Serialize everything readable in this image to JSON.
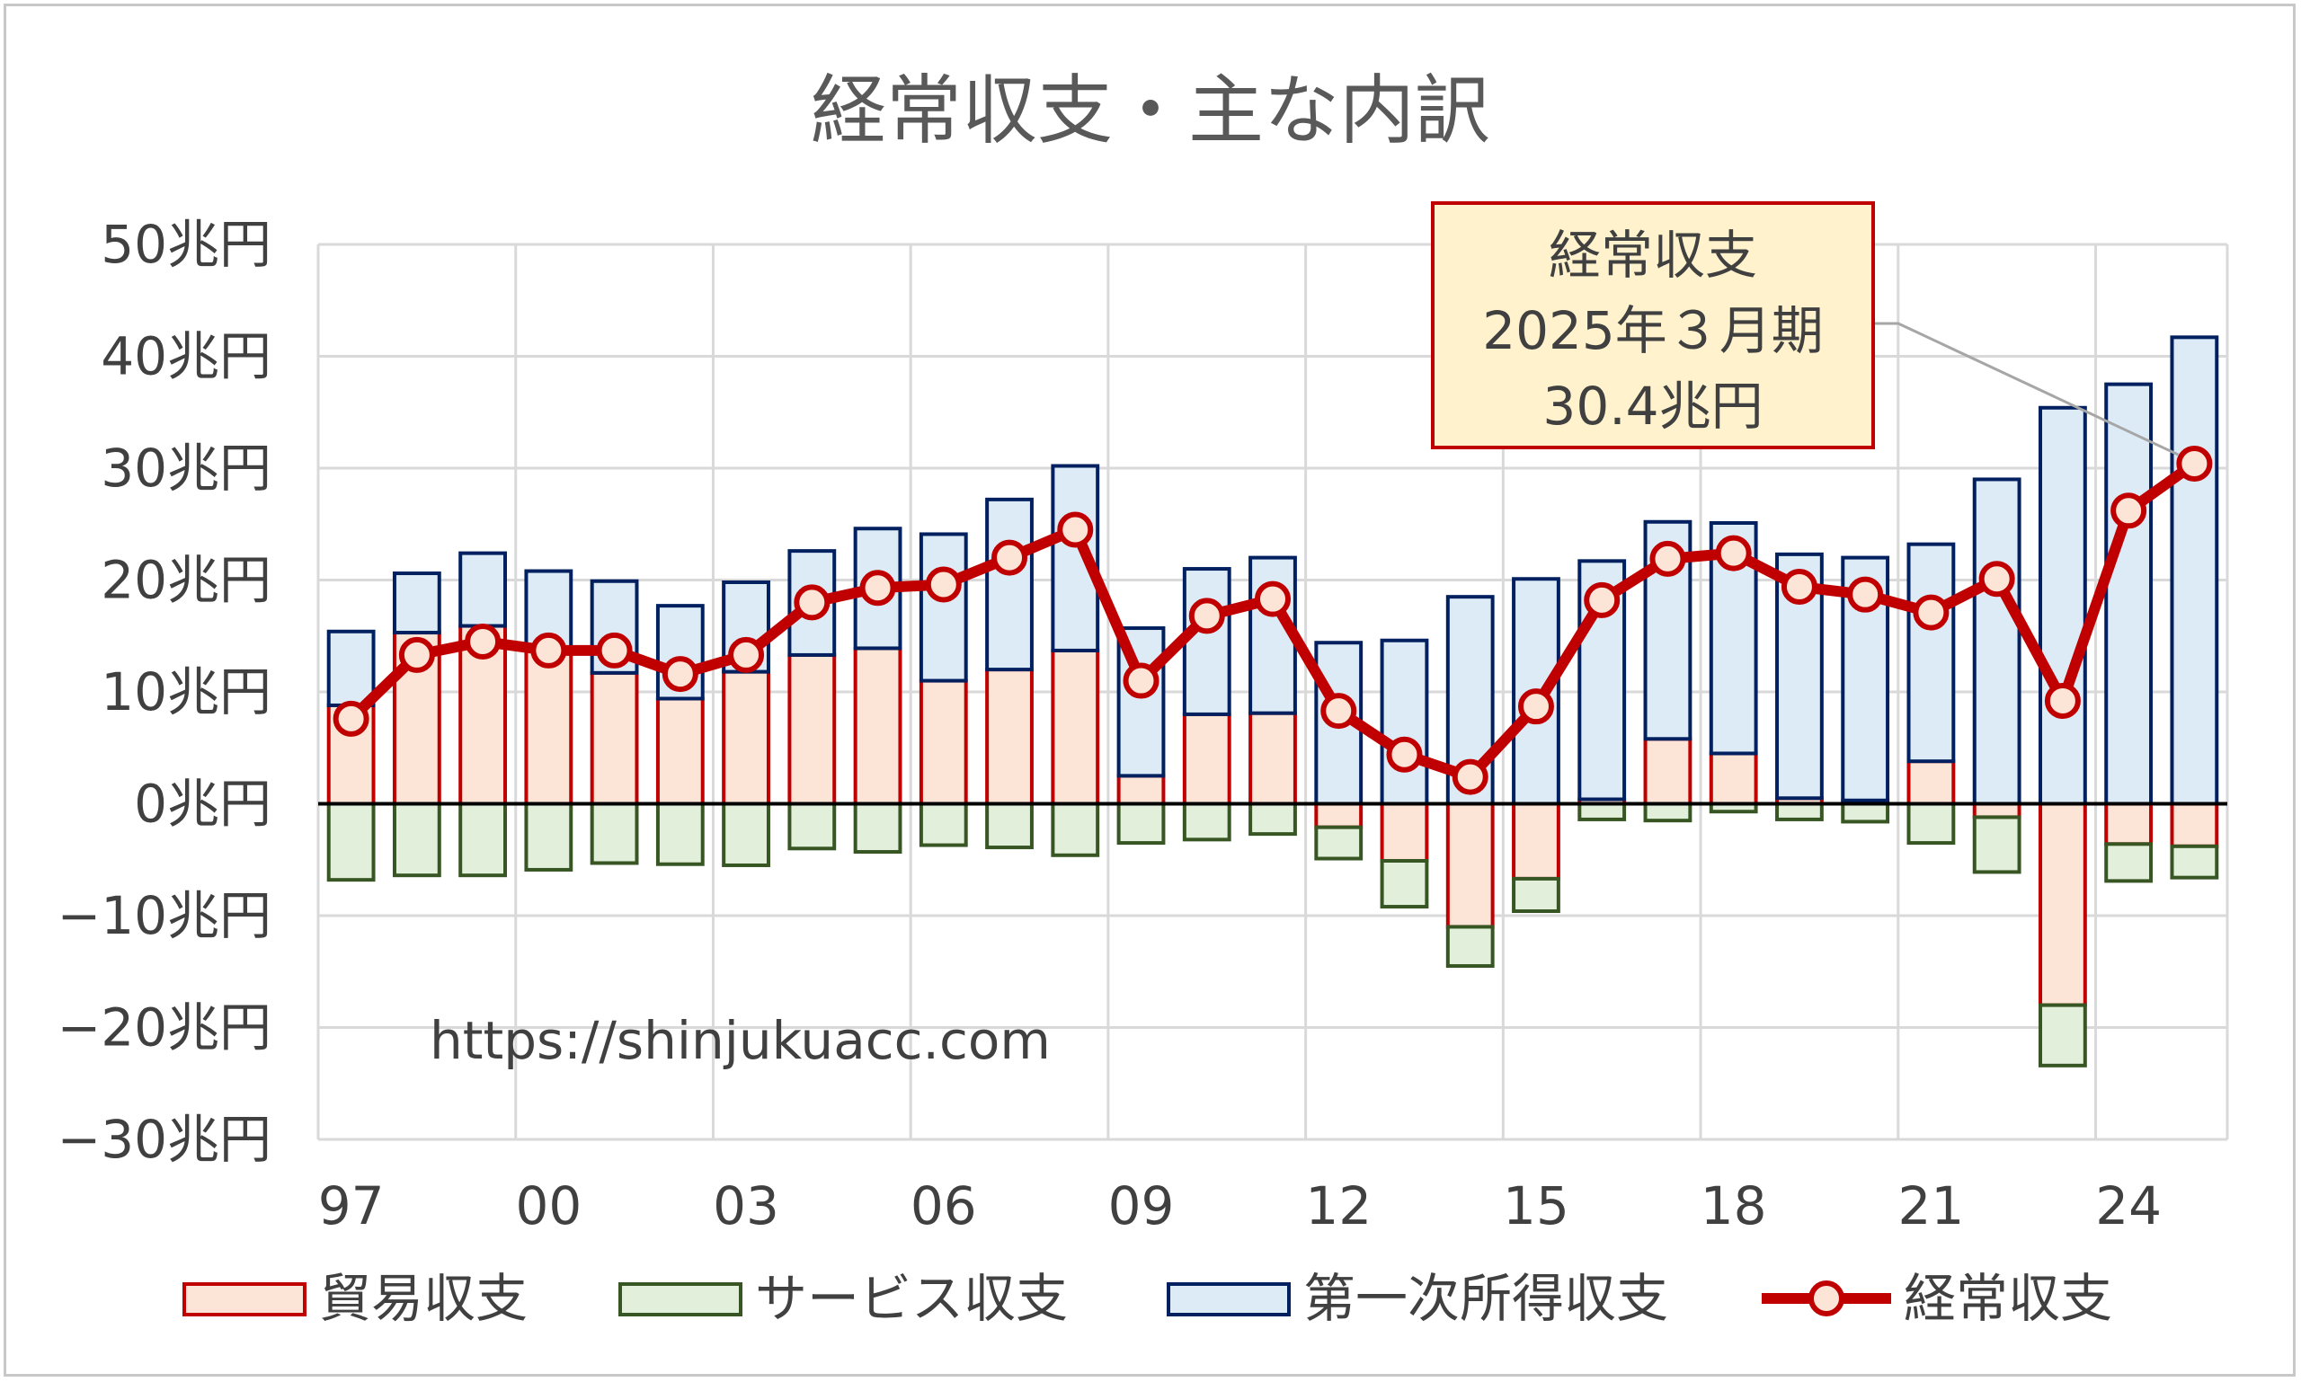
{
  "chart_data": {
    "type": "bar+line",
    "title": "経常収支・主な内訳",
    "ylim": [
      -30,
      50
    ],
    "y_ticks": [
      {
        "value": 50,
        "label": "50兆円"
      },
      {
        "value": 40,
        "label": "40兆円"
      },
      {
        "value": 30,
        "label": "30兆円"
      },
      {
        "value": 20,
        "label": "20兆円"
      },
      {
        "value": 10,
        "label": "10兆円"
      },
      {
        "value": 0,
        "label": "0兆円"
      },
      {
        "value": -10,
        "label": "−10兆円"
      },
      {
        "value": -20,
        "label": "−20兆円"
      },
      {
        "value": -30,
        "label": "−30兆円"
      }
    ],
    "x_tick_labels": [
      {
        "index": 0,
        "label": "97"
      },
      {
        "index": 3,
        "label": "00"
      },
      {
        "index": 6,
        "label": "03"
      },
      {
        "index": 9,
        "label": "06"
      },
      {
        "index": 12,
        "label": "09"
      },
      {
        "index": 15,
        "label": "12"
      },
      {
        "index": 18,
        "label": "15"
      },
      {
        "index": 21,
        "label": "18"
      },
      {
        "index": 24,
        "label": "21"
      },
      {
        "index": 27,
        "label": "24"
      }
    ],
    "series": [
      {
        "name": "貿易収支",
        "kind": "bar",
        "values": [
          8.8,
          15.3,
          15.9,
          13.8,
          11.7,
          9.4,
          11.8,
          13.3,
          13.9,
          11.0,
          12.0,
          13.7,
          2.5,
          8.0,
          8.1,
          -2.1,
          -5.1,
          -11.0,
          -6.7,
          0.4,
          5.8,
          4.5,
          0.5,
          0.3,
          3.8,
          -1.2,
          -18.0,
          -3.6,
          -3.8
        ]
      },
      {
        "name": "サービス収支",
        "kind": "bar",
        "values": [
          -6.8,
          -6.4,
          -6.4,
          -5.9,
          -5.3,
          -5.4,
          -5.5,
          -4.0,
          -4.3,
          -3.7,
          -3.9,
          -4.6,
          -3.5,
          -3.2,
          -2.7,
          -2.8,
          -4.1,
          -3.5,
          -2.9,
          -1.4,
          -1.5,
          -0.7,
          -1.4,
          -1.6,
          -3.5,
          -4.9,
          -5.4,
          -3.3,
          -2.8
        ]
      },
      {
        "name": "第一次所得収支",
        "kind": "bar",
        "values": [
          6.6,
          5.3,
          6.5,
          7.0,
          8.2,
          8.3,
          8.0,
          9.3,
          10.7,
          13.1,
          15.2,
          16.5,
          13.2,
          13.0,
          13.9,
          14.4,
          14.6,
          18.5,
          20.1,
          21.3,
          19.4,
          20.6,
          21.8,
          21.7,
          19.4,
          29.0,
          35.4,
          37.5,
          41.7
        ]
      },
      {
        "name": "経常収支",
        "kind": "line",
        "values": [
          7.6,
          13.3,
          14.5,
          13.7,
          13.7,
          11.6,
          13.3,
          18.0,
          19.3,
          19.6,
          22.0,
          24.5,
          11.0,
          16.8,
          18.3,
          8.3,
          4.4,
          2.4,
          8.7,
          18.2,
          21.9,
          22.4,
          19.4,
          18.7,
          17.1,
          20.1,
          9.2,
          26.2,
          30.4
        ]
      }
    ],
    "callout": {
      "lines": [
        "経常収支",
        "2025年３月期",
        "30.4兆円"
      ],
      "target_index": 28
    },
    "watermark": "https://shinjukuacc.com",
    "legend": [
      {
        "label": "貿易収支",
        "kind": "bar",
        "fill": "#fce4d6",
        "stroke": "#c00000"
      },
      {
        "label": "サービス収支",
        "kind": "bar",
        "fill": "#e2efda",
        "stroke": "#375623"
      },
      {
        "label": "第一次所得収支",
        "kind": "bar",
        "fill": "#ddebf7",
        "stroke": "#002060"
      },
      {
        "label": "経常収支",
        "kind": "line",
        "fill": "#fce4d6",
        "stroke": "#c00000"
      }
    ],
    "legend_placement": "bottom",
    "grid": true,
    "colors": {
      "trade_fill": "#fce4d6",
      "trade_stroke": "#c00000",
      "service_fill": "#e2efda",
      "service_stroke": "#375623",
      "income_fill": "#ddebf7",
      "income_stroke": "#002060",
      "line": "#c00000",
      "marker_fill": "#fce4d6",
      "grid": "#d9d9d9",
      "callout_fill": "#fff2cc",
      "callout_stroke": "#c00000"
    }
  }
}
